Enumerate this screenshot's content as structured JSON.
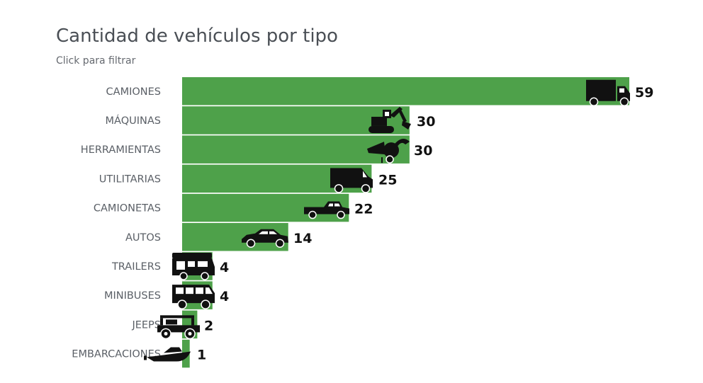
{
  "title": "Cantidad de vehículos por tipo",
  "subtitle": "Click para filtrar",
  "colors": {
    "bar": "#4ea14a",
    "icon": "#111111"
  },
  "chart_data": {
    "type": "bar",
    "orientation": "horizontal",
    "title": "Cantidad de vehículos por tipo",
    "subtitle": "Click para filtrar",
    "categories": [
      "CAMIONES",
      "MÁQUINAS",
      "HERRAMIENTAS",
      "UTILITARIAS",
      "CAMIONETAS",
      "AUTOS",
      "TRAILERS",
      "MINIBUSES",
      "JEEPS",
      "EMBARCACIONES"
    ],
    "values": [
      59,
      30,
      30,
      25,
      22,
      14,
      4,
      4,
      2,
      1
    ],
    "icons": [
      "truck-icon",
      "excavator-icon",
      "wood-chipper-icon",
      "van-icon",
      "pickup-icon",
      "car-icon",
      "camper-trailer-icon",
      "minibus-icon",
      "jeep-icon",
      "boat-icon"
    ],
    "xlim": [
      0,
      59
    ],
    "grid": false,
    "legend": "none"
  }
}
